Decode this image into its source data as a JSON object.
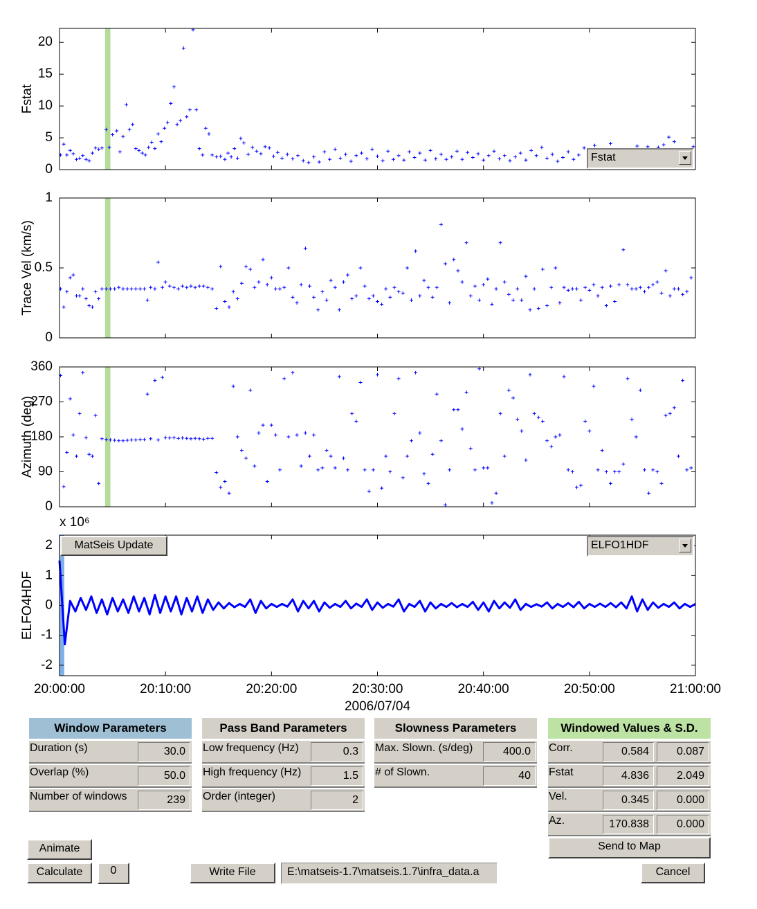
{
  "chart_data": [
    {
      "type": "scatter",
      "ylabel": "Fstat",
      "color": "#0000ff",
      "xlim": [
        0,
        60
      ],
      "ylim": [
        0,
        22.2
      ],
      "xticks": [
        0,
        10,
        20,
        30,
        40,
        50,
        60
      ],
      "yticks": [
        0,
        5,
        10,
        15,
        20
      ],
      "highlight": {
        "xrange": [
          4.3,
          4.8
        ],
        "color": "#b4dc98"
      },
      "x": [
        0.1,
        0.4,
        0.7,
        1.0,
        1.3,
        1.6,
        1.9,
        2.2,
        2.5,
        2.8,
        3.1,
        3.4,
        3.7,
        4.0,
        4.4,
        4.7,
        5.0,
        5.4,
        5.7,
        6.0,
        6.3,
        6.6,
        6.9,
        7.2,
        7.5,
        7.8,
        8.1,
        8.4,
        8.7,
        9.0,
        9.3,
        9.6,
        9.9,
        10.2,
        10.5,
        10.8,
        11.1,
        11.4,
        11.7,
        12.0,
        12.3,
        12.6,
        12.9,
        13.2,
        13.5,
        13.8,
        14.1,
        14.4,
        14.8,
        15.2,
        15.6,
        15.9,
        16.2,
        16.5,
        16.8,
        17.1,
        17.4,
        17.8,
        18.2,
        18.6,
        19.0,
        19.4,
        19.8,
        20.2,
        20.6,
        21.0,
        21.5,
        22.0,
        22.5,
        23.0,
        23.5,
        24.0,
        24.5,
        25.0,
        25.5,
        26.0,
        26.5,
        27.0,
        27.5,
        28.0,
        28.5,
        29.0,
        29.5,
        30.0,
        30.5,
        31.0,
        31.5,
        32.0,
        32.5,
        33.0,
        33.5,
        34.0,
        34.5,
        35.0,
        35.5,
        36.0,
        36.5,
        37.0,
        37.5,
        38.0,
        38.5,
        39.0,
        39.5,
        40.0,
        40.5,
        41.0,
        41.5,
        42.0,
        42.5,
        43.0,
        43.5,
        44.0,
        44.5,
        45.0,
        45.5,
        46.0,
        46.5,
        47.0,
        47.5,
        48.0,
        48.5,
        49.0,
        49.5,
        50.5,
        52.0,
        54.5,
        55.5,
        56.5,
        57.0,
        57.5,
        58.0,
        59.8
      ],
      "values": [
        2.3,
        4.0,
        2.3,
        3.0,
        2.5,
        1.6,
        1.8,
        2.2,
        1.6,
        1.4,
        2.6,
        3.4,
        3.2,
        3.4,
        6.3,
        3.5,
        5.5,
        6.1,
        2.8,
        5.2,
        10.2,
        6.3,
        7.1,
        3.3,
        3.0,
        2.6,
        2.3,
        3.5,
        4.3,
        3.3,
        5.6,
        4.4,
        6.5,
        7.4,
        10.4,
        13.0,
        7.1,
        7.7,
        19.1,
        8.3,
        9.4,
        22.0,
        9.4,
        3.3,
        2.3,
        6.5,
        5.6,
        2.3,
        2.0,
        2.1,
        1.6,
        2.6,
        2.0,
        3.3,
        1.8,
        4.9,
        4.2,
        2.4,
        3.5,
        2.9,
        2.5,
        3.6,
        3.4,
        2.1,
        2.7,
        1.8,
        2.4,
        1.7,
        2.2,
        1.4,
        1.1,
        2.0,
        1.2,
        2.8,
        1.6,
        3.2,
        1.8,
        2.4,
        1.3,
        2.2,
        2.6,
        1.7,
        3.2,
        2.1,
        1.4,
        2.9,
        1.6,
        2.2,
        1.5,
        2.8,
        1.9,
        2.6,
        1.5,
        3.0,
        1.7,
        2.4,
        1.6,
        2.0,
        2.9,
        1.6,
        2.7,
        1.9,
        2.5,
        1.5,
        2.2,
        2.9,
        1.7,
        2.2,
        1.4,
        2.0,
        2.6,
        1.5,
        3.0,
        2.2,
        3.5,
        1.8,
        2.4,
        1.3,
        1.9,
        2.8,
        1.6,
        2.3,
        3.4,
        3.8,
        4.1,
        3.7,
        3.6,
        3.5,
        3.9,
        5.1,
        4.4,
        3.6
      ]
    },
    {
      "type": "scatter",
      "ylabel": "Trace Vel (km/s)",
      "color": "#0000ff",
      "xlim": [
        0,
        60
      ],
      "ylim": [
        0,
        1
      ],
      "xticks": [
        0,
        10,
        20,
        30,
        40,
        50,
        60
      ],
      "yticks": [
        0,
        0.5,
        1
      ],
      "highlight": {
        "xrange": [
          4.3,
          4.8
        ],
        "color": "#b4dc98"
      },
      "x": [
        0.1,
        0.4,
        0.7,
        1.0,
        1.3,
        1.6,
        1.9,
        2.2,
        2.5,
        2.8,
        3.1,
        3.4,
        3.7,
        4.0,
        4.4,
        4.8,
        5.2,
        5.6,
        6.0,
        6.4,
        6.8,
        7.2,
        7.6,
        8.0,
        8.3,
        8.6,
        9.0,
        9.3,
        9.7,
        10.0,
        10.4,
        10.8,
        11.2,
        11.6,
        12.0,
        12.4,
        12.8,
        13.2,
        13.6,
        14.0,
        14.4,
        14.8,
        15.2,
        15.6,
        16,
        16.4,
        16.8,
        17.2,
        17.6,
        18,
        18.4,
        18.8,
        19.2,
        19.6,
        20,
        20.4,
        20.8,
        21.2,
        21.6,
        22,
        22.4,
        22.8,
        23.2,
        23.6,
        24,
        24.4,
        24.8,
        25.2,
        25.6,
        26,
        26.4,
        26.8,
        27.2,
        27.6,
        28,
        28.4,
        28.8,
        29.2,
        29.6,
        30,
        30.4,
        30.8,
        31.2,
        31.6,
        32,
        32.4,
        32.8,
        33.2,
        33.6,
        34,
        34.4,
        34.8,
        35.2,
        35.6,
        36,
        36.4,
        36.8,
        37.2,
        37.6,
        38,
        38.4,
        38.8,
        39.2,
        39.6,
        40,
        40.4,
        40.8,
        41.2,
        41.6,
        42,
        42.4,
        42.8,
        43.2,
        43.6,
        44,
        44.4,
        44.8,
        45.2,
        45.6,
        46,
        46.4,
        46.8,
        47.2,
        47.6,
        48,
        48.4,
        48.8,
        49.2,
        49.6,
        50,
        50.4,
        50.8,
        51.2,
        51.6,
        52,
        52.4,
        52.8,
        53.2,
        53.6,
        54,
        54.4,
        54.8,
        55.2,
        55.6,
        56,
        56.4,
        56.8,
        57.2,
        57.6,
        58,
        58.4,
        58.8,
        59.2,
        59.6
      ],
      "values": [
        0.35,
        0.22,
        0.33,
        0.43,
        0.45,
        0.3,
        0.3,
        0.35,
        0.28,
        0.23,
        0.22,
        0.33,
        0.28,
        0.35,
        0.35,
        0.35,
        0.35,
        0.36,
        0.35,
        0.35,
        0.35,
        0.35,
        0.35,
        0.35,
        0.27,
        0.36,
        0.35,
        0.54,
        0.36,
        0.4,
        0.37,
        0.36,
        0.35,
        0.37,
        0.36,
        0.37,
        0.36,
        0.37,
        0.37,
        0.36,
        0.35,
        0.21,
        0.51,
        0.26,
        0.22,
        0.33,
        0.28,
        0.39,
        0.51,
        0.49,
        0.36,
        0.4,
        0.56,
        0.38,
        0.43,
        0.35,
        0.35,
        0.36,
        0.5,
        0.29,
        0.25,
        0.38,
        0.64,
        0.37,
        0.29,
        0.2,
        0.33,
        0.27,
        0.41,
        0.36,
        0.2,
        0.4,
        0.45,
        0.28,
        0.3,
        0.5,
        0.37,
        0.28,
        0.3,
        0.26,
        0.24,
        0.35,
        0.29,
        0.36,
        0.33,
        0.32,
        0.5,
        0.27,
        0.62,
        0.3,
        0.41,
        0.36,
        0.29,
        0.36,
        0.81,
        0.53,
        0.25,
        0.56,
        0.48,
        0.4,
        0.68,
        0.3,
        0.37,
        0.27,
        0.38,
        0.42,
        0.24,
        0.35,
        0.68,
        0.4,
        0.31,
        0.27,
        0.35,
        0.27,
        0.44,
        0.2,
        0.35,
        0.21,
        0.49,
        0.23,
        0.36,
        0.5,
        0.25,
        0.36,
        0.34,
        0.35,
        0.35,
        0.27,
        0.36,
        0.34,
        0.38,
        0.3,
        0.36,
        0.23,
        0.37,
        0.26,
        0.38,
        0.63,
        0.38,
        0.35,
        0.35,
        0.36,
        0.33,
        0.36,
        0.38,
        0.4,
        0.32,
        0.48,
        0.3,
        0.35,
        0.35,
        0.31,
        0.33,
        0.43
      ]
    },
    {
      "type": "scatter",
      "ylabel": "Azimuth (deg)",
      "color": "#0000ff",
      "xlim": [
        0,
        60
      ],
      "ylim": [
        0,
        360
      ],
      "xticks": [
        0,
        10,
        20,
        30,
        40,
        50,
        60
      ],
      "yticks": [
        0,
        90,
        180,
        270,
        360
      ],
      "highlight": {
        "xrange": [
          4.3,
          4.8
        ],
        "color": "#b4dc98"
      },
      "x": [
        0.1,
        0.4,
        0.7,
        1.0,
        1.3,
        1.6,
        1.9,
        2.2,
        2.5,
        2.8,
        3.1,
        3.4,
        3.7,
        4.0,
        4.4,
        4.8,
        5.2,
        5.6,
        6.0,
        6.4,
        6.8,
        7.2,
        7.6,
        8.0,
        8.3,
        8.6,
        9.0,
        9.3,
        9.7,
        10.0,
        10.4,
        10.8,
        11.2,
        11.6,
        12.0,
        12.4,
        12.8,
        13.2,
        13.6,
        14.0,
        14.4,
        14.8,
        15.2,
        15.6,
        16,
        16.4,
        16.8,
        17.2,
        17.6,
        18,
        18.4,
        18.8,
        19.2,
        19.6,
        20,
        20.4,
        20.8,
        21.2,
        21.6,
        22,
        22.4,
        22.8,
        23.2,
        23.6,
        24,
        24.4,
        24.8,
        25.2,
        25.6,
        26,
        26.4,
        26.8,
        27.2,
        27.6,
        28,
        28.4,
        28.8,
        29.2,
        29.6,
        30,
        30.4,
        30.8,
        31.2,
        31.6,
        32,
        32.4,
        32.8,
        33.2,
        33.6,
        34,
        34.4,
        34.8,
        35.2,
        35.6,
        36,
        36.4,
        36.8,
        37.2,
        37.6,
        38,
        38.4,
        38.8,
        39.2,
        39.6,
        40,
        40.4,
        40.8,
        41.2,
        41.6,
        42,
        42.4,
        42.8,
        43.2,
        43.6,
        44,
        44.4,
        44.8,
        45.2,
        45.6,
        46,
        46.4,
        46.8,
        47.2,
        47.6,
        48,
        48.4,
        48.8,
        49.2,
        49.6,
        50,
        50.4,
        50.8,
        51.2,
        51.6,
        52,
        52.4,
        52.8,
        53.2,
        53.6,
        54,
        54.4,
        54.8,
        55.2,
        55.6,
        56,
        56.4,
        56.8,
        57.2,
        57.6,
        58,
        58.4,
        58.8,
        59.2,
        59.6
      ],
      "values": [
        338,
        52,
        140,
        278,
        185,
        130,
        240,
        345,
        178,
        135,
        130,
        235,
        60,
        175,
        173,
        172,
        171,
        170,
        170,
        171,
        172,
        172,
        173,
        173,
        290,
        175,
        325,
        172,
        333,
        178,
        177,
        178,
        176,
        177,
        176,
        175,
        176,
        175,
        174,
        176,
        176,
        88,
        50,
        65,
        35,
        310,
        180,
        145,
        125,
        300,
        105,
        190,
        210,
        65,
        210,
        185,
        95,
        330,
        180,
        345,
        185,
        105,
        190,
        130,
        185,
        95,
        100,
        145,
        130,
        100,
        335,
        125,
        95,
        240,
        220,
        320,
        95,
        40,
        95,
        340,
        48,
        130,
        90,
        240,
        330,
        75,
        130,
        170,
        345,
        190,
        85,
        60,
        135,
        290,
        170,
        5,
        95,
        250,
        250,
        200,
        295,
        150,
        95,
        355,
        100,
        100,
        10,
        35,
        240,
        130,
        300,
        280,
        225,
        195,
        120,
        340,
        240,
        230,
        220,
        170,
        155,
        180,
        185,
        335,
        95,
        90,
        50,
        55,
        220,
        195,
        310,
        95,
        145,
        90,
        60,
        90,
        90,
        110,
        330,
        225,
        180,
        300,
        95,
        35,
        95,
        90,
        60,
        235,
        240,
        255,
        130,
        325,
        95,
        100
      ]
    },
    {
      "type": "line",
      "ylabel": "ELFO4HDF",
      "annotation": "x 10⁶",
      "xlabel": "2006/07/04",
      "color": "#0000ff",
      "xlim": [
        0,
        60
      ],
      "ylim": [
        -2.35,
        2.35
      ],
      "xticks": [
        {
          "value": 0,
          "label": "20:00:00"
        },
        {
          "value": 10,
          "label": "20:10:00"
        },
        {
          "value": 20,
          "label": "20:20:00"
        },
        {
          "value": 30,
          "label": "20:30:00"
        },
        {
          "value": 40,
          "label": "20:40:00"
        },
        {
          "value": 50,
          "label": "20:50:00"
        },
        {
          "value": 60,
          "label": "21:00:00"
        }
      ],
      "yticks": [
        -2,
        -1,
        0,
        1,
        2
      ],
      "highlight": {
        "xrange": [
          0,
          0.45
        ],
        "color": "#7fb0e8"
      },
      "x": [
        0,
        0.5,
        1,
        1.5,
        2,
        2.5,
        3,
        3.5,
        4,
        4.5,
        5,
        5.5,
        6,
        6.5,
        7,
        7.5,
        8,
        8.5,
        9,
        9.5,
        10,
        10.5,
        11,
        11.5,
        12,
        12.5,
        13,
        13.5,
        14,
        14.5,
        15,
        15.5,
        16,
        16.5,
        17,
        17.5,
        18,
        18.5,
        19,
        19.5,
        20,
        20.5,
        21,
        21.5,
        22,
        22.5,
        23,
        23.5,
        24,
        24.5,
        25,
        25.5,
        26,
        26.5,
        27,
        27.5,
        28,
        28.5,
        29,
        29.5,
        30,
        30.5,
        31,
        31.5,
        32,
        32.5,
        33,
        33.5,
        34,
        34.5,
        35,
        35.5,
        36,
        36.5,
        37,
        37.5,
        38,
        38.5,
        39,
        39.5,
        40,
        40.5,
        41,
        41.5,
        42,
        42.5,
        43,
        43.5,
        44,
        44.5,
        45,
        45.5,
        46,
        46.5,
        47,
        47.5,
        48,
        48.5,
        49,
        49.5,
        50,
        50.5,
        51,
        51.5,
        52,
        52.5,
        53,
        53.5,
        54,
        54.5,
        55,
        55.5,
        56,
        56.5,
        57,
        57.5,
        58,
        58.5,
        59,
        59.5,
        60
      ],
      "values": [
        1.5,
        -1.3,
        0.15,
        -0.2,
        0.25,
        -0.15,
        0.3,
        -0.25,
        0.2,
        -0.3,
        0.25,
        -0.2,
        0.2,
        -0.25,
        0.3,
        -0.2,
        0.25,
        -0.3,
        0.35,
        -0.25,
        0.3,
        -0.2,
        0.3,
        -0.3,
        0.25,
        -0.2,
        0.3,
        -0.25,
        0.2,
        -0.15,
        0.1,
        -0.1,
        0.08,
        -0.06,
        0.05,
        -0.05,
        0.2,
        -0.25,
        0.15,
        -0.1,
        0.05,
        -0.05,
        0.05,
        -0.04,
        0.2,
        -0.2,
        0.15,
        -0.1,
        0.15,
        -0.2,
        0.1,
        -0.08,
        0.05,
        -0.05,
        0.15,
        -0.1,
        0.06,
        -0.05,
        0.2,
        -0.15,
        0.1,
        -0.08,
        0.05,
        -0.04,
        0.2,
        -0.2,
        0.05,
        -0.05,
        0.15,
        -0.2,
        0.1,
        -0.1,
        0.05,
        -0.05,
        0.08,
        -0.06,
        0.05,
        -0.05,
        0.12,
        -0.15,
        0.1,
        -0.2,
        0.15,
        -0.1,
        0.1,
        -0.08,
        0.2,
        -0.15,
        0.05,
        -0.05,
        0.04,
        -0.04,
        0.1,
        -0.1,
        0.05,
        -0.05,
        0.08,
        -0.06,
        0.12,
        -0.1,
        0.05,
        -0.05,
        0.06,
        -0.05,
        0.08,
        -0.06,
        0.1,
        -0.1,
        0.3,
        -0.2,
        0.2,
        -0.15,
        0.1,
        -0.08,
        0.05,
        -0.05,
        0.1,
        -0.1,
        0.05,
        -0.05,
        0.05
      ]
    }
  ],
  "controls": {
    "fstat_menu": "Fstat",
    "channel_menu": "ELFO1HDF",
    "update_button": "MatSeis Update",
    "window_parameters": {
      "title": "Window Parameters",
      "rows": [
        {
          "label": "Duration (s)",
          "value": "30.0"
        },
        {
          "label": "Overlap (%)",
          "value": "50.0"
        },
        {
          "label": "Number of windows",
          "value": "239"
        }
      ]
    },
    "pass_band_parameters": {
      "title": "Pass Band Parameters",
      "rows": [
        {
          "label": "Low frequency (Hz)",
          "value": "0.3"
        },
        {
          "label": "High frequency (Hz)",
          "value": "1.5"
        },
        {
          "label": "Order (integer)",
          "value": "2"
        }
      ]
    },
    "slowness_parameters": {
      "title": "Slowness Parameters",
      "rows": [
        {
          "label": "Max. Slown. (s/deg)",
          "value": "400.0"
        },
        {
          "label": "# of Slown.",
          "value": "40"
        }
      ]
    },
    "windowed_values": {
      "title": "Windowed Values & S.D.",
      "rows": [
        {
          "label": "Corr.",
          "value": "0.584",
          "sd": "0.087"
        },
        {
          "label": "Fstat",
          "value": "4.836",
          "sd": "2.049"
        },
        {
          "label": "Vel.",
          "value": "0.345",
          "sd": "0.000"
        },
        {
          "label": "Az.",
          "value": "170.838",
          "sd": "0.000"
        }
      ]
    },
    "send_to_map": "Send to Map",
    "animate": "Animate",
    "calculate": "Calculate",
    "counter": "0",
    "write_file": "Write File",
    "file_path": "E:\\matseis-1.7\\matseis.1.7\\infra_data.a",
    "cancel": "Cancel"
  }
}
